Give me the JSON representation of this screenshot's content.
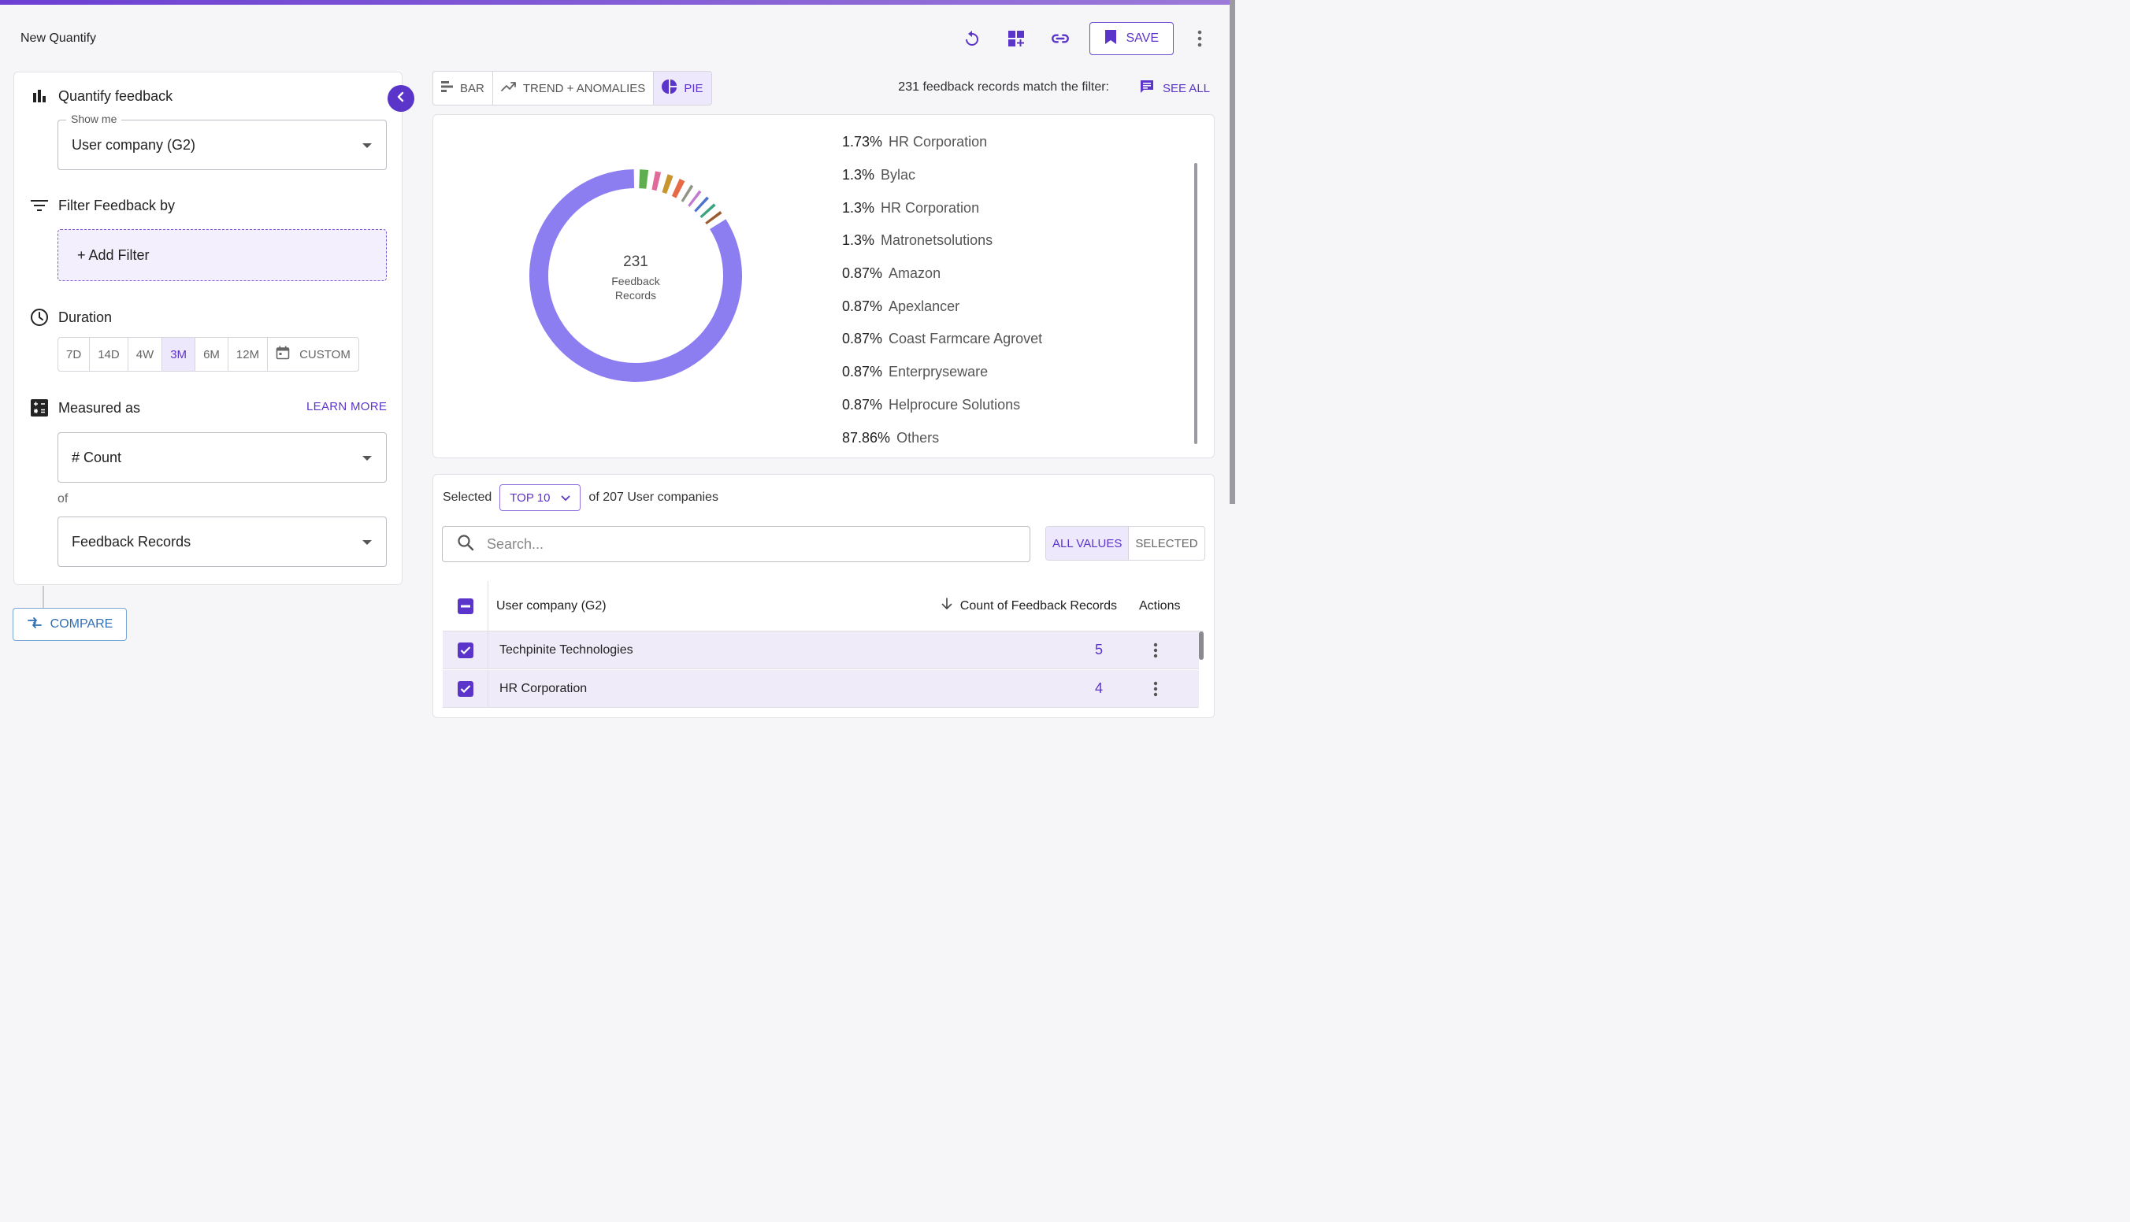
{
  "app": {
    "title": "New Quantify"
  },
  "header": {
    "save_label": "SAVE"
  },
  "panel": {
    "quantify_title": "Quantify feedback",
    "show_me_label": "Show me",
    "show_me_value": "User company (G2)",
    "filter_title": "Filter Feedback by",
    "add_filter_label": "+ Add Filter",
    "duration_title": "Duration",
    "durations": [
      "7D",
      "14D",
      "4W",
      "3M",
      "6M",
      "12M",
      "CUSTOM"
    ],
    "duration_selected": "3M",
    "measured_title": "Measured as",
    "learn_more": "LEARN MORE",
    "measure_value": "# Count",
    "of_label": "of",
    "of_value": "Feedback Records",
    "compare_label": "COMPARE"
  },
  "viz_tabs": [
    "BAR",
    "TREND + ANOMALIES",
    "PIE"
  ],
  "viz_selected": "PIE",
  "match": {
    "count": "231",
    "text": " feedback records match the filter:",
    "see_all": "SEE ALL"
  },
  "donut": {
    "total": "231",
    "label_line1": "Feedback",
    "label_line2": "Records"
  },
  "legend": [
    {
      "pct": "1.73%",
      "name": "HR Corporation",
      "color": "#5fae4f"
    },
    {
      "pct": "1.3%",
      "name": "Bylac",
      "color": "#e06a9a"
    },
    {
      "pct": "1.3%",
      "name": "HR Corporation",
      "color": "#c9952f"
    },
    {
      "pct": "1.3%",
      "name": "Matronetsolutions",
      "color": "#e56a45"
    },
    {
      "pct": "0.87%",
      "name": "Amazon",
      "color": "#8f9484"
    },
    {
      "pct": "0.87%",
      "name": "Apexlancer",
      "color": "#c07ad0"
    },
    {
      "pct": "0.87%",
      "name": "Coast Farmcare Agrovet",
      "color": "#4d73cc"
    },
    {
      "pct": "0.87%",
      "name": "Enterpryseware",
      "color": "#3da381"
    },
    {
      "pct": "0.87%",
      "name": "Helprocure Solutions",
      "color": "#9c5a2e"
    },
    {
      "pct": "87.86%",
      "name": "Others",
      "color": "#8c7ef0"
    }
  ],
  "selection": {
    "prefix": "Selected",
    "top": "TOP 10",
    "suffix": "of 207 User companies"
  },
  "search": {
    "placeholder": "Search..."
  },
  "value_toggle": [
    "ALL VALUES",
    "SELECTED"
  ],
  "table": {
    "col_name": "User company (G2)",
    "col_count": "Count of Feedback Records",
    "col_actions": "Actions",
    "rows": [
      {
        "name": "Techpinite Technologies",
        "count": "5"
      },
      {
        "name": "HR Corporation",
        "count": "4"
      }
    ]
  }
}
